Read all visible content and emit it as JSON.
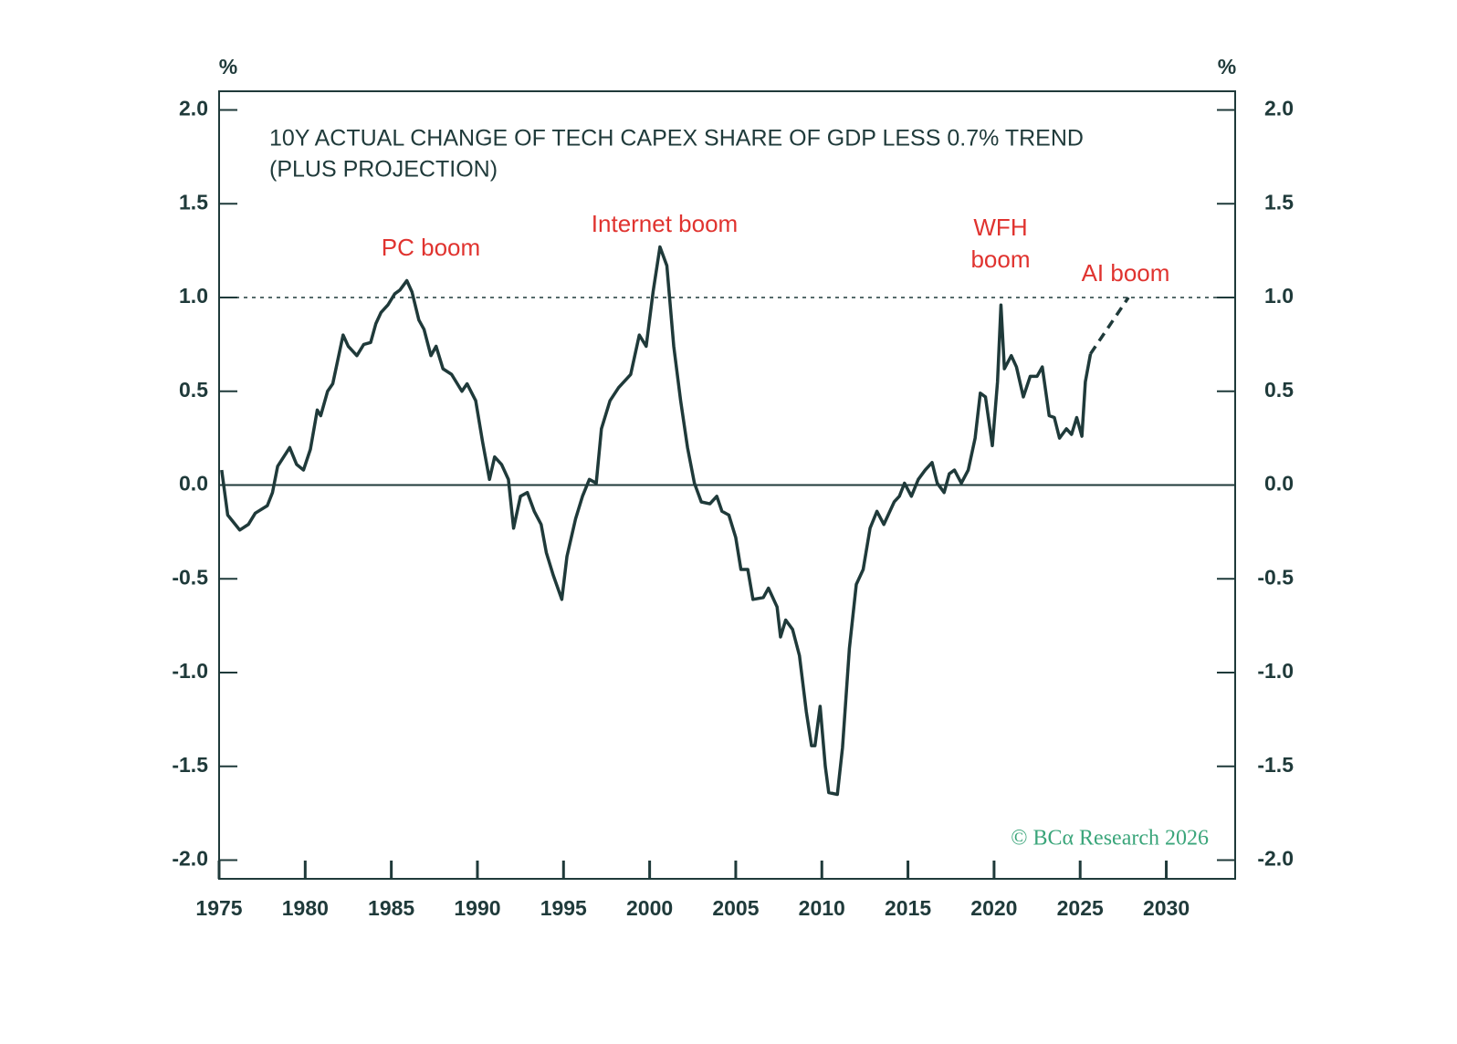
{
  "chart_data": {
    "type": "line",
    "title": [
      "10Y ACTUAL CHANGE OF TECH CAPEX SHARE OF GDP LESS 0.7% TREND",
      "(PLUS PROJECTION)"
    ],
    "y_label": "%",
    "y2_label": "%",
    "source": "© BCα Research 2026",
    "annotations": [
      [
        "PC boom"
      ],
      [
        "Internet boom"
      ],
      [
        "WFH",
        "boom"
      ],
      [
        "AI boom"
      ]
    ],
    "annotation_color": "#e0332f",
    "xlim": [
      1975,
      2034
    ],
    "xticks": [
      1975,
      1980,
      1985,
      1990,
      1995,
      2000,
      2005,
      2010,
      2015,
      2020,
      2025,
      2030
    ],
    "ylim": [
      -2.1,
      2.1
    ],
    "yticks": [
      {
        "value": -2,
        "label": "-2.0"
      },
      -1.5,
      {
        "value": -1,
        "label": "-1.0"
      },
      -0.5,
      {
        "value": 0,
        "label": "0.0"
      },
      0.5,
      {
        "value": 1,
        "label": "1.0"
      },
      1.5,
      {
        "value": 2,
        "label": "2.0"
      }
    ],
    "y2lim": [
      -2.1,
      2.1
    ],
    "y2ticks": [
      {
        "value": -2,
        "label": "-2.0"
      },
      -1.5,
      {
        "value": -1,
        "label": "-1.0"
      },
      -0.5,
      {
        "value": 0,
        "label": "0.0"
      },
      0.5,
      {
        "value": 1,
        "label": "1.0"
      },
      1.5,
      {
        "value": 2,
        "label": "2.0"
      }
    ],
    "reference_line": 1.0,
    "series": [
      {
        "color": "#1f3a3a",
        "dashed": false,
        "x": [
          1975.15,
          1975.5,
          1976.2,
          1976.7,
          1977.1,
          1977.8,
          1978.1,
          1978.4,
          1979.1,
          1979.5,
          1979.9,
          1980.3,
          1980.7,
          1980.9,
          1981.3,
          1981.6,
          1982.2,
          1982.5,
          1983.0,
          1983.4,
          1983.8,
          1984.1,
          1984.4,
          1984.8,
          1985.2,
          1985.5,
          1985.9,
          1986.2,
          1986.6,
          1986.9,
          1987.3,
          1987.6,
          1988.0,
          1988.5,
          1989.1,
          1989.4,
          1989.9,
          1990.3,
          1990.7,
          1991.0,
          1991.4,
          1991.8,
          1992.1,
          1992.5,
          1992.9,
          1993.3,
          1993.7,
          1994.0,
          1994.4,
          1994.9,
          1995.2,
          1995.7,
          1996.1,
          1996.5,
          1996.9,
          1997.2,
          1997.7,
          1998.2,
          1998.9,
          1999.4,
          1999.8,
          2000.2,
          2000.6,
          2001.0,
          2001.4,
          2001.8,
          2002.2,
          2002.6,
          2003.0,
          2003.5,
          2003.9,
          2004.2,
          2004.6,
          2005.0,
          2005.3,
          2005.7,
          2006.0,
          2006.6,
          2006.9,
          2007.4,
          2007.6,
          2007.9,
          2008.3,
          2008.7,
          2009.1,
          2009.4,
          2009.6,
          2009.9,
          2010.2,
          2010.4,
          2010.9,
          2011.2,
          2011.6,
          2012.0,
          2012.4,
          2012.8,
          2013.2,
          2013.6,
          2014.2,
          2014.5,
          2014.8,
          2015.2,
          2015.6,
          2016.0,
          2016.4,
          2016.7,
          2017.1,
          2017.4,
          2017.7,
          2018.1,
          2018.5,
          2018.9,
          2019.2,
          2019.5,
          2019.9,
          2020.2,
          2020.4,
          2020.6,
          2021.0,
          2021.3,
          2021.7,
          2022.1,
          2022.5,
          2022.8,
          2023.2,
          2023.5,
          2023.8,
          2024.2,
          2024.5,
          2024.8,
          2025.1,
          2025.3,
          2025.6
        ],
        "values": [
          0.08,
          -0.16,
          -0.24,
          -0.21,
          -0.15,
          -0.11,
          -0.04,
          0.1,
          0.2,
          0.11,
          0.08,
          0.19,
          0.4,
          0.37,
          0.5,
          0.54,
          0.8,
          0.74,
          0.69,
          0.75,
          0.76,
          0.86,
          0.92,
          0.96,
          1.02,
          1.04,
          1.09,
          1.03,
          0.88,
          0.83,
          0.69,
          0.74,
          0.62,
          0.59,
          0.5,
          0.54,
          0.45,
          0.23,
          0.03,
          0.15,
          0.11,
          0.03,
          -0.23,
          -0.06,
          -0.04,
          -0.14,
          -0.21,
          -0.36,
          -0.48,
          -0.61,
          -0.38,
          -0.18,
          -0.06,
          0.03,
          0.01,
          0.3,
          0.45,
          0.52,
          0.59,
          0.8,
          0.74,
          1.03,
          1.27,
          1.17,
          0.74,
          0.45,
          0.2,
          0.01,
          -0.09,
          -0.1,
          -0.06,
          -0.14,
          -0.16,
          -0.28,
          -0.45,
          -0.45,
          -0.61,
          -0.6,
          -0.55,
          -0.65,
          -0.81,
          -0.72,
          -0.77,
          -0.91,
          -1.21,
          -1.39,
          -1.39,
          -1.18,
          -1.5,
          -1.64,
          -1.65,
          -1.4,
          -0.87,
          -0.53,
          -0.45,
          -0.23,
          -0.14,
          -0.21,
          -0.09,
          -0.06,
          0.01,
          -0.06,
          0.03,
          0.08,
          0.12,
          0.01,
          -0.04,
          0.06,
          0.08,
          0.01,
          0.08,
          0.25,
          0.49,
          0.47,
          0.21,
          0.55,
          0.96,
          0.62,
          0.69,
          0.63,
          0.47,
          0.58,
          0.58,
          0.63,
          0.37,
          0.36,
          0.25,
          0.3,
          0.27,
          0.36,
          0.26,
          0.55,
          0.7
        ]
      },
      {
        "color": "#1f3a3a",
        "dashed": true,
        "x": [
          2025.6,
          2027.8
        ],
        "values": [
          0.7,
          1.0
        ]
      }
    ],
    "source_color": "#3aa57a"
  }
}
